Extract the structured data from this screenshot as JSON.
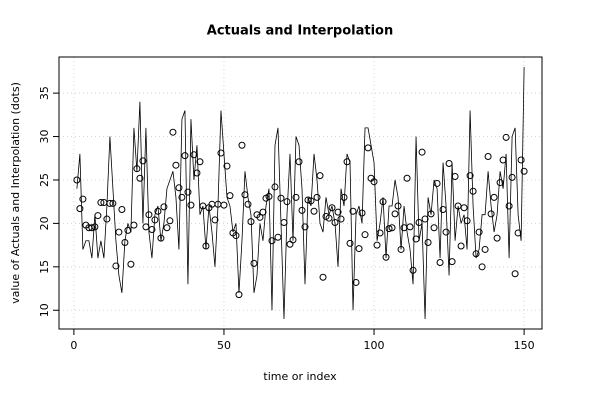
{
  "chart_data": {
    "type": "line",
    "title": "Actuals and Interpolation",
    "x_label": "time or index",
    "y_label": "value of Actuals and Interpolation (dots)",
    "x": [
      1,
      2,
      3,
      4,
      5,
      6,
      7,
      8,
      9,
      10,
      11,
      12,
      13,
      14,
      15,
      16,
      17,
      18,
      19,
      20,
      21,
      22,
      23,
      24,
      25,
      26,
      27,
      28,
      29,
      30,
      31,
      32,
      33,
      34,
      35,
      36,
      37,
      38,
      39,
      40,
      41,
      42,
      43,
      44,
      45,
      46,
      47,
      48,
      49,
      50,
      51,
      52,
      53,
      54,
      55,
      56,
      57,
      58,
      59,
      60,
      61,
      62,
      63,
      64,
      65,
      66,
      67,
      68,
      69,
      70,
      71,
      72,
      73,
      74,
      75,
      76,
      77,
      78,
      79,
      80,
      81,
      82,
      83,
      84,
      85,
      86,
      87,
      88,
      89,
      90,
      91,
      92,
      93,
      94,
      95,
      96,
      97,
      98,
      99,
      100,
      101,
      102,
      103,
      104,
      105,
      106,
      107,
      108,
      109,
      110,
      111,
      112,
      113,
      114,
      115,
      116,
      117,
      118,
      119,
      120,
      121,
      122,
      123,
      124,
      125,
      126,
      127,
      128,
      129,
      130,
      131,
      132,
      133,
      134,
      135,
      136,
      137,
      138,
      139,
      140,
      141,
      142,
      143,
      144,
      145,
      146,
      147,
      148,
      149,
      150
    ],
    "series": [
      {
        "mode": "line",
        "color": "#000000",
        "values": [
          24,
          28,
          17,
          18,
          18,
          16,
          21,
          16,
          18,
          16,
          22,
          30,
          24,
          18,
          14,
          12,
          18,
          20,
          19,
          31,
          26,
          34,
          20,
          31,
          19,
          16,
          21,
          22,
          18,
          20,
          24,
          25,
          26,
          23,
          17,
          32,
          33,
          13,
          32,
          25,
          29,
          21,
          22,
          17,
          22,
          19,
          15,
          22,
          33,
          28,
          23,
          22,
          19,
          20,
          12,
          18,
          26,
          23,
          21,
          12,
          14,
          20,
          18,
          22,
          24,
          10,
          29,
          31,
          20,
          9,
          21,
          28,
          18,
          30,
          29,
          24,
          13,
          23,
          22,
          28,
          25,
          20,
          19,
          23,
          21,
          22,
          20,
          15,
          24,
          22,
          28,
          27,
          10,
          21,
          22,
          20,
          31,
          31,
          29,
          27,
          18,
          20,
          23,
          16,
          22,
          22,
          25,
          23,
          17,
          22,
          19,
          17,
          13,
          30,
          18,
          20,
          9,
          23,
          21,
          25,
          24,
          16,
          27,
          22,
          14,
          27,
          18,
          22,
          20,
          21,
          17,
          33,
          22,
          16,
          17,
          21,
          21,
          26,
          22,
          19,
          21,
          26,
          24,
          28,
          16,
          30,
          31,
          21,
          18,
          38
        ]
      },
      {
        "mode": "points",
        "color": "#000000",
        "values": [
          25,
          21.7,
          22.8,
          19.8,
          19.5,
          19.5,
          19.6,
          20.9,
          22.4,
          22.4,
          20.5,
          22.3,
          22.3,
          15.1,
          19,
          21.6,
          17.8,
          19.2,
          15.3,
          19.8,
          26.3,
          25.2,
          27.2,
          19.6,
          21,
          19.3,
          20.4,
          21.4,
          18.3,
          21.9,
          19.5,
          20.3,
          30.5,
          26.7,
          24.1,
          23,
          27.8,
          23.6,
          22.1,
          27.9,
          25.8,
          27.1,
          22,
          17.4,
          21.8,
          22.2,
          20.4,
          22.2,
          28.1,
          22.1,
          26.6,
          23.2,
          18.9,
          18.6,
          11.8,
          29,
          23.3,
          22.2,
          20.2,
          15.4,
          21,
          20.7,
          21.3,
          22.9,
          23.1,
          18,
          24.2,
          18.4,
          22.9,
          20.1,
          22.5,
          17.6,
          18.1,
          23,
          27.1,
          21.5,
          19.6,
          22.7,
          22.6,
          21.4,
          23,
          25.5,
          13.8,
          20.8,
          20.6,
          21.8,
          20.1,
          21.3,
          20.5,
          23,
          27.1,
          17.7,
          21.4,
          13.2,
          17.1,
          21.2,
          18.7,
          28.7,
          25.2,
          24.8,
          17.5,
          18.9,
          22.5,
          16.1,
          19.4,
          19.5,
          21.1,
          22,
          17,
          19.5,
          25.2,
          19.6,
          14.6,
          18.2,
          20.1,
          28.2,
          20.5,
          17.8,
          21.1,
          19.5,
          24.6,
          15.5,
          21.6,
          19,
          26.9,
          15.6,
          25.4,
          22,
          17.4,
          21.8,
          20.3,
          25.5,
          23.7,
          16.5,
          19,
          15,
          17,
          27.7,
          21.1,
          23,
          18.3,
          24.7,
          27.3,
          29.9,
          22,
          25.3,
          14.2,
          18.9,
          27.3,
          26
        ]
      }
    ],
    "xlim": [
      -4.96,
      155.96
    ],
    "xticks": [
      0,
      50,
      100,
      150
    ],
    "ylim": [
      7.84,
      39.16
    ],
    "yticks": [
      10,
      15,
      20,
      25,
      30,
      35
    ],
    "grid": true
  }
}
